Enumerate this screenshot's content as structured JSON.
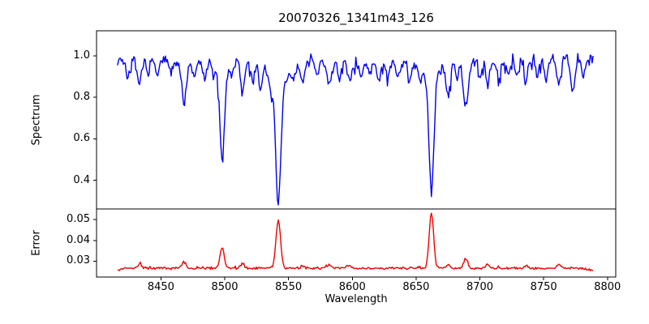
{
  "chart_data": {
    "type": "line",
    "title": "20070326_1341m43_126",
    "xlabel": "Wavelength",
    "x_range": [
      8416,
      8789
    ],
    "x_step": 0.75,
    "xlim": [
      8399.5,
      8806.5
    ],
    "xticks": [
      8450,
      8500,
      8550,
      8600,
      8650,
      8700,
      8750,
      8800
    ],
    "xtick_labels": [
      "8450",
      "8500",
      "8550",
      "8600",
      "8650",
      "8700",
      "8750",
      "8800"
    ],
    "grid": false,
    "legend": false,
    "panels": [
      {
        "name": "spectrum",
        "ylabel": "Spectrum",
        "ylim": [
          0.262,
          1.121
        ],
        "yticks": [
          0.4,
          0.6,
          0.8,
          1.0
        ],
        "ytick_labels": [
          "0.4",
          "0.6",
          "0.8",
          "1.0"
        ],
        "line_color": "#0000ee",
        "continuum_level": 0.975,
        "noise_amplitude": 0.028,
        "max_value": 1.06,
        "absorption_lines": [
          {
            "c": 8424,
            "min": 0.9,
            "s": 1.5
          },
          {
            "c": 8433,
            "min": 0.87,
            "s": 1.8
          },
          {
            "c": 8440,
            "min": 0.91,
            "s": 1.2
          },
          {
            "c": 8447,
            "min": 0.9,
            "s": 1.5
          },
          {
            "c": 8458,
            "min": 0.92,
            "s": 1.4
          },
          {
            "c": 8468,
            "min": 0.78,
            "s": 1.8
          },
          {
            "c": 8476,
            "min": 0.89,
            "s": 1.4
          },
          {
            "c": 8484,
            "min": 0.9,
            "s": 1.4
          },
          {
            "c": 8491,
            "min": 0.92,
            "s": 1.2
          },
          {
            "c": 8498,
            "min": 0.49,
            "s": 1.8,
            "wd": 0.05,
            "ws": 5
          },
          {
            "c": 8505,
            "min": 0.92,
            "s": 1.3
          },
          {
            "c": 8514,
            "min": 0.83,
            "s": 1.7
          },
          {
            "c": 8522,
            "min": 0.88,
            "s": 1.4
          },
          {
            "c": 8528,
            "min": 0.86,
            "s": 1.5
          },
          {
            "c": 8536,
            "min": 0.91,
            "s": 1.2
          },
          {
            "c": 8542,
            "min": 0.29,
            "s": 2.0,
            "wd": 0.12,
            "ws": 7
          },
          {
            "c": 8554,
            "min": 0.9,
            "s": 1.5
          },
          {
            "c": 8561,
            "min": 0.88,
            "s": 1.6
          },
          {
            "c": 8572,
            "min": 0.9,
            "s": 1.4
          },
          {
            "c": 8582,
            "min": 0.86,
            "s": 1.6
          },
          {
            "c": 8590,
            "min": 0.89,
            "s": 1.4
          },
          {
            "c": 8598,
            "min": 0.88,
            "s": 1.5
          },
          {
            "c": 8607,
            "min": 0.9,
            "s": 1.3
          },
          {
            "c": 8614,
            "min": 0.91,
            "s": 1.3
          },
          {
            "c": 8621,
            "min": 0.89,
            "s": 1.4
          },
          {
            "c": 8628,
            "min": 0.91,
            "s": 1.3
          },
          {
            "c": 8636,
            "min": 0.9,
            "s": 1.4
          },
          {
            "c": 8645,
            "min": 0.89,
            "s": 1.5
          },
          {
            "c": 8653,
            "min": 0.91,
            "s": 1.3
          },
          {
            "c": 8662,
            "min": 0.35,
            "s": 1.9,
            "wd": 0.08,
            "ws": 6
          },
          {
            "c": 8675,
            "min": 0.82,
            "s": 1.7
          },
          {
            "c": 8682,
            "min": 0.89,
            "s": 1.3
          },
          {
            "c": 8689,
            "min": 0.74,
            "s": 1.9
          },
          {
            "c": 8700,
            "min": 0.9,
            "s": 1.4
          },
          {
            "c": 8706,
            "min": 0.87,
            "s": 1.6
          },
          {
            "c": 8715,
            "min": 0.89,
            "s": 1.4
          },
          {
            "c": 8722,
            "min": 0.91,
            "s": 1.3
          },
          {
            "c": 8729,
            "min": 0.9,
            "s": 1.4
          },
          {
            "c": 8736,
            "min": 0.88,
            "s": 1.5
          },
          {
            "c": 8745,
            "min": 0.9,
            "s": 1.3
          },
          {
            "c": 8752,
            "min": 0.89,
            "s": 1.4
          },
          {
            "c": 8762,
            "min": 0.87,
            "s": 1.6
          },
          {
            "c": 8773,
            "min": 0.83,
            "s": 1.7
          },
          {
            "c": 8781,
            "min": 0.9,
            "s": 1.4
          }
        ]
      },
      {
        "name": "error",
        "ylabel": "Error",
        "ylim": [
          0.0224,
          0.0551
        ],
        "yticks": [
          0.03,
          0.04,
          0.05
        ],
        "ytick_labels": [
          "0.03",
          "0.04",
          "0.05"
        ],
        "line_color": "#ee0000",
        "baseline_level": 0.0266,
        "noise_amplitude": 0.0007,
        "peaks": [
          {
            "c": 8433,
            "peak": 0.0285,
            "s": 1.5
          },
          {
            "c": 8468,
            "peak": 0.0297,
            "s": 1.6
          },
          {
            "c": 8498,
            "peak": 0.0368,
            "s": 1.6
          },
          {
            "c": 8514,
            "peak": 0.0287,
            "s": 1.5
          },
          {
            "c": 8542,
            "peak": 0.0498,
            "s": 1.8
          },
          {
            "c": 8561,
            "peak": 0.028,
            "s": 1.4
          },
          {
            "c": 8582,
            "peak": 0.0283,
            "s": 1.5
          },
          {
            "c": 8598,
            "peak": 0.028,
            "s": 1.4
          },
          {
            "c": 8662,
            "peak": 0.0533,
            "s": 1.7
          },
          {
            "c": 8675,
            "peak": 0.0285,
            "s": 1.4
          },
          {
            "c": 8689,
            "peak": 0.031,
            "s": 1.6
          },
          {
            "c": 8706,
            "peak": 0.0285,
            "s": 1.4
          },
          {
            "c": 8736,
            "peak": 0.028,
            "s": 1.3
          },
          {
            "c": 8762,
            "peak": 0.0284,
            "s": 1.4
          }
        ]
      }
    ],
    "colors": {
      "spine": "#000000",
      "background": "#ffffff",
      "text": "#000000"
    }
  }
}
